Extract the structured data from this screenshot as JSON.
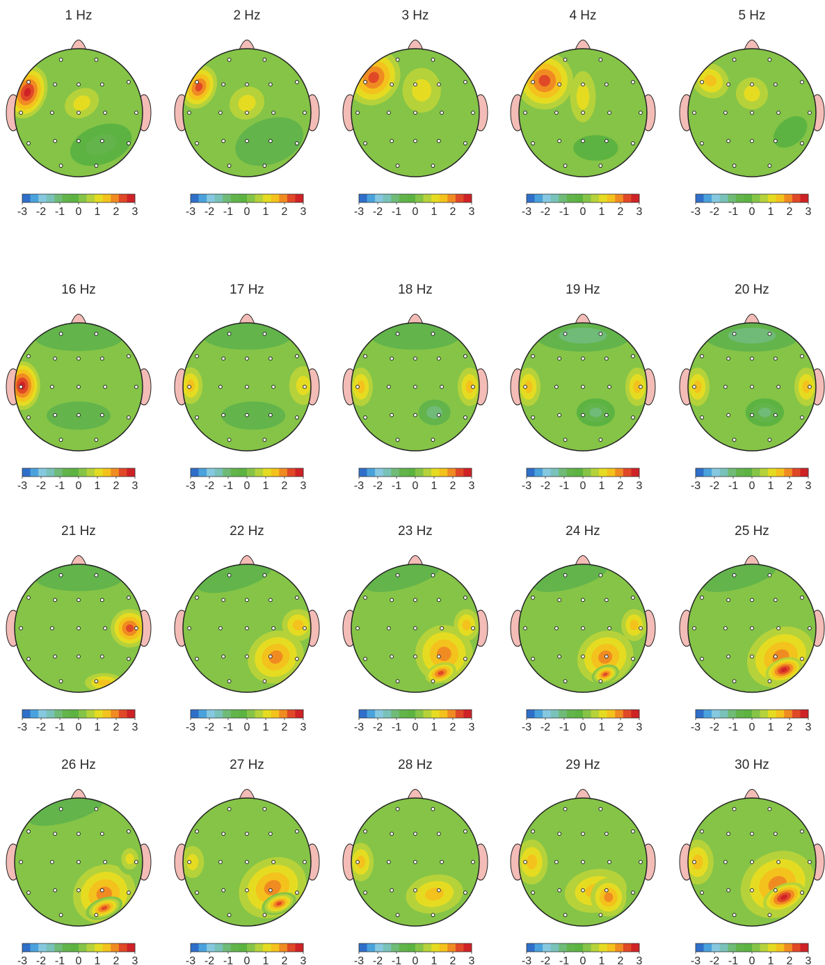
{
  "colorbar": {
    "ticks": [
      "-3",
      "-2",
      "-1",
      "0",
      "1",
      "2",
      "3"
    ],
    "colors": [
      "#2f6fc9",
      "#4aa2dc",
      "#86c8e0",
      "#79c2b9",
      "#6fbb77",
      "#62b44b",
      "#5cb341",
      "#85c447",
      "#b6d23a",
      "#e5dc22",
      "#f4c21c",
      "#f08b22",
      "#e04827",
      "#cf2226"
    ]
  },
  "maps": [
    {
      "label": "1 Hz",
      "blobs": [
        {
          "nx": -0.8,
          "ny": -0.32,
          "rx": 0.3,
          "ry": 0.42,
          "v": 2.7,
          "rot": 20
        },
        {
          "nx": 0.05,
          "ny": -0.15,
          "rx": 0.28,
          "ry": 0.22,
          "v": 1.1,
          "rot": -30
        },
        {
          "nx": 0.35,
          "ny": 0.5,
          "rx": 0.5,
          "ry": 0.3,
          "v": -0.8,
          "rot": -20
        }
      ]
    },
    {
      "label": "2 Hz",
      "blobs": [
        {
          "nx": -0.75,
          "ny": -0.4,
          "rx": 0.32,
          "ry": 0.42,
          "v": 2.5,
          "rot": 25
        },
        {
          "nx": 0.0,
          "ny": -0.15,
          "rx": 0.28,
          "ry": 0.25,
          "v": 1.0,
          "rot": -30
        },
        {
          "nx": 0.35,
          "ny": 0.45,
          "rx": 0.55,
          "ry": 0.35,
          "v": -0.6,
          "rot": -20
        }
      ]
    },
    {
      "label": "3 Hz",
      "blobs": [
        {
          "nx": -0.65,
          "ny": -0.55,
          "rx": 0.4,
          "ry": 0.45,
          "v": 2.4,
          "rot": 35
        },
        {
          "nx": 0.1,
          "ny": -0.35,
          "rx": 0.3,
          "ry": 0.35,
          "v": 1.0,
          "rot": 0
        }
      ]
    },
    {
      "label": "4 Hz",
      "blobs": [
        {
          "nx": -0.6,
          "ny": -0.5,
          "rx": 0.45,
          "ry": 0.45,
          "v": 2.4,
          "rot": 35
        },
        {
          "nx": 0.0,
          "ny": -0.25,
          "rx": 0.2,
          "ry": 0.4,
          "v": 1.0,
          "rot": 0
        },
        {
          "nx": 0.2,
          "ny": 0.55,
          "rx": 0.35,
          "ry": 0.2,
          "v": -0.4,
          "rot": 0
        }
      ]
    },
    {
      "label": "5 Hz",
      "blobs": [
        {
          "nx": -0.65,
          "ny": -0.5,
          "rx": 0.4,
          "ry": 0.35,
          "v": 1.6,
          "rot": 35
        },
        {
          "nx": 0.0,
          "ny": -0.3,
          "rx": 0.25,
          "ry": 0.25,
          "v": 0.9,
          "rot": 0
        },
        {
          "nx": 0.6,
          "ny": 0.3,
          "rx": 0.3,
          "ry": 0.2,
          "v": -0.4,
          "rot": -40
        }
      ]
    },
    {
      "label": "16 Hz",
      "blobs": [
        {
          "nx": -0.88,
          "ny": -0.02,
          "rx": 0.28,
          "ry": 0.38,
          "v": 2.6,
          "rot": 0
        },
        {
          "nx": 0.0,
          "ny": -0.78,
          "rx": 0.7,
          "ry": 0.22,
          "v": -0.5,
          "rot": 0
        },
        {
          "nx": 0.0,
          "ny": 0.45,
          "rx": 0.5,
          "ry": 0.22,
          "v": -0.5,
          "rot": 0
        }
      ]
    },
    {
      "label": "17 Hz",
      "blobs": [
        {
          "nx": -0.88,
          "ny": -0.02,
          "rx": 0.25,
          "ry": 0.38,
          "v": 1.6,
          "rot": 0
        },
        {
          "nx": 0.88,
          "ny": -0.02,
          "rx": 0.22,
          "ry": 0.3,
          "v": 0.9,
          "rot": 0
        },
        {
          "nx": 0.0,
          "ny": -0.8,
          "rx": 0.7,
          "ry": 0.22,
          "v": -0.5,
          "rot": 0
        },
        {
          "nx": 0.1,
          "ny": 0.45,
          "rx": 0.5,
          "ry": 0.22,
          "v": -0.5,
          "rot": 0
        }
      ]
    },
    {
      "label": "18 Hz",
      "blobs": [
        {
          "nx": -0.85,
          "ny": 0.0,
          "rx": 0.25,
          "ry": 0.4,
          "v": 1.6,
          "rot": 0
        },
        {
          "nx": 0.85,
          "ny": 0.0,
          "rx": 0.25,
          "ry": 0.4,
          "v": 1.6,
          "rot": 0
        },
        {
          "nx": 0.0,
          "ny": -0.8,
          "rx": 0.7,
          "ry": 0.22,
          "v": -0.5,
          "rot": 0
        },
        {
          "nx": 0.3,
          "ny": 0.4,
          "rx": 0.25,
          "ry": 0.2,
          "v": -1.0,
          "rot": 0
        }
      ]
    },
    {
      "label": "19 Hz",
      "blobs": [
        {
          "nx": -0.85,
          "ny": 0.0,
          "rx": 0.25,
          "ry": 0.4,
          "v": 1.6,
          "rot": 0
        },
        {
          "nx": 0.85,
          "ny": 0.0,
          "rx": 0.25,
          "ry": 0.4,
          "v": 1.6,
          "rot": 0
        },
        {
          "nx": 0.0,
          "ny": -0.8,
          "rx": 0.75,
          "ry": 0.25,
          "v": -0.9,
          "rot": 0
        },
        {
          "nx": 0.2,
          "ny": 0.4,
          "rx": 0.3,
          "ry": 0.22,
          "v": -1.2,
          "rot": 0
        }
      ]
    },
    {
      "label": "20 Hz",
      "blobs": [
        {
          "nx": -0.85,
          "ny": 0.0,
          "rx": 0.25,
          "ry": 0.4,
          "v": 1.6,
          "rot": 0
        },
        {
          "nx": 0.85,
          "ny": 0.0,
          "rx": 0.25,
          "ry": 0.4,
          "v": 1.7,
          "rot": 0
        },
        {
          "nx": 0.0,
          "ny": -0.8,
          "rx": 0.75,
          "ry": 0.25,
          "v": -0.9,
          "rot": 0
        },
        {
          "nx": 0.2,
          "ny": 0.4,
          "rx": 0.3,
          "ry": 0.22,
          "v": -1.2,
          "rot": 0
        }
      ]
    },
    {
      "label": "21 Hz",
      "blobs": [
        {
          "nx": 0.8,
          "ny": 0.0,
          "rx": 0.3,
          "ry": 0.3,
          "v": 2.2,
          "rot": 0
        },
        {
          "nx": 0.4,
          "ny": 0.85,
          "rx": 0.3,
          "ry": 0.15,
          "v": 1.4,
          "rot": 0
        },
        {
          "nx": 0.0,
          "ny": -0.8,
          "rx": 0.7,
          "ry": 0.22,
          "v": -0.5,
          "rot": 0
        }
      ]
    },
    {
      "label": "22 Hz",
      "blobs": [
        {
          "nx": 0.45,
          "ny": 0.45,
          "rx": 0.45,
          "ry": 0.4,
          "v": 1.8,
          "rot": -30
        },
        {
          "nx": 0.8,
          "ny": -0.05,
          "rx": 0.25,
          "ry": 0.25,
          "v": 1.4,
          "rot": 0
        },
        {
          "nx": -0.2,
          "ny": -0.8,
          "rx": 0.6,
          "ry": 0.2,
          "v": -0.5,
          "rot": -15
        }
      ]
    },
    {
      "label": "23 Hz",
      "blobs": [
        {
          "nx": 0.45,
          "ny": 0.4,
          "rx": 0.45,
          "ry": 0.45,
          "v": 1.8,
          "rot": -30
        },
        {
          "nx": 0.4,
          "ny": 0.7,
          "rx": 0.25,
          "ry": 0.15,
          "v": 2.3,
          "rot": -20
        },
        {
          "nx": 0.8,
          "ny": -0.05,
          "rx": 0.2,
          "ry": 0.25,
          "v": 1.4,
          "rot": 0
        },
        {
          "nx": -0.2,
          "ny": -0.8,
          "rx": 0.6,
          "ry": 0.18,
          "v": -0.5,
          "rot": -15
        }
      ]
    },
    {
      "label": "24 Hz",
      "blobs": [
        {
          "nx": 0.35,
          "ny": 0.45,
          "rx": 0.45,
          "ry": 0.4,
          "v": 1.8,
          "rot": -30
        },
        {
          "nx": 0.35,
          "ny": 0.72,
          "rx": 0.22,
          "ry": 0.14,
          "v": 2.5,
          "rot": -20
        },
        {
          "nx": 0.8,
          "ny": -0.05,
          "rx": 0.2,
          "ry": 0.25,
          "v": 1.4,
          "rot": 0
        },
        {
          "nx": -0.2,
          "ny": -0.8,
          "rx": 0.6,
          "ry": 0.18,
          "v": -0.5,
          "rot": -15
        }
      ]
    },
    {
      "label": "25 Hz",
      "blobs": [
        {
          "nx": 0.45,
          "ny": 0.45,
          "rx": 0.55,
          "ry": 0.45,
          "v": 1.8,
          "rot": -30
        },
        {
          "nx": 0.5,
          "ny": 0.65,
          "rx": 0.3,
          "ry": 0.18,
          "v": 2.6,
          "rot": -20
        },
        {
          "nx": -0.2,
          "ny": -0.8,
          "rx": 0.6,
          "ry": 0.18,
          "v": -0.5,
          "rot": -15
        }
      ]
    },
    {
      "label": "26 Hz",
      "blobs": [
        {
          "nx": 0.4,
          "ny": 0.5,
          "rx": 0.5,
          "ry": 0.45,
          "v": 1.8,
          "rot": -30
        },
        {
          "nx": 0.4,
          "ny": 0.72,
          "rx": 0.3,
          "ry": 0.16,
          "v": 2.5,
          "rot": -20
        },
        {
          "nx": 0.8,
          "ny": -0.05,
          "rx": 0.2,
          "ry": 0.25,
          "v": 1.2,
          "rot": 0
        },
        {
          "nx": -0.2,
          "ny": -0.8,
          "rx": 0.6,
          "ry": 0.18,
          "v": -0.5,
          "rot": -15
        }
      ]
    },
    {
      "label": "27 Hz",
      "blobs": [
        {
          "nx": 0.4,
          "ny": 0.4,
          "rx": 0.55,
          "ry": 0.45,
          "v": 1.8,
          "rot": -30
        },
        {
          "nx": 0.5,
          "ny": 0.65,
          "rx": 0.28,
          "ry": 0.16,
          "v": 2.5,
          "rot": -20
        },
        {
          "nx": -0.85,
          "ny": 0.0,
          "rx": 0.18,
          "ry": 0.25,
          "v": 0.9,
          "rot": 0
        }
      ]
    },
    {
      "label": "28 Hz",
      "blobs": [
        {
          "nx": 0.3,
          "ny": 0.5,
          "rx": 0.6,
          "ry": 0.4,
          "v": 1.6,
          "rot": -10
        },
        {
          "nx": -0.85,
          "ny": 0.0,
          "rx": 0.2,
          "ry": 0.3,
          "v": 1.3,
          "rot": 0
        }
      ]
    },
    {
      "label": "29 Hz",
      "blobs": [
        {
          "nx": 0.2,
          "ny": 0.45,
          "rx": 0.65,
          "ry": 0.45,
          "v": 1.6,
          "rot": -10
        },
        {
          "nx": 0.4,
          "ny": 0.55,
          "rx": 0.28,
          "ry": 0.3,
          "v": 1.9,
          "rot": 0
        },
        {
          "nx": -0.8,
          "ny": 0.0,
          "rx": 0.25,
          "ry": 0.35,
          "v": 1.3,
          "rot": 0
        }
      ]
    },
    {
      "label": "30 Hz",
      "blobs": [
        {
          "nx": 0.4,
          "ny": 0.35,
          "rx": 0.6,
          "ry": 0.5,
          "v": 1.8,
          "rot": -30
        },
        {
          "nx": 0.5,
          "ny": 0.55,
          "rx": 0.35,
          "ry": 0.2,
          "v": 2.6,
          "rot": -25
        },
        {
          "nx": -0.85,
          "ny": 0.0,
          "rx": 0.25,
          "ry": 0.35,
          "v": 1.5,
          "rot": 0
        }
      ]
    }
  ]
}
